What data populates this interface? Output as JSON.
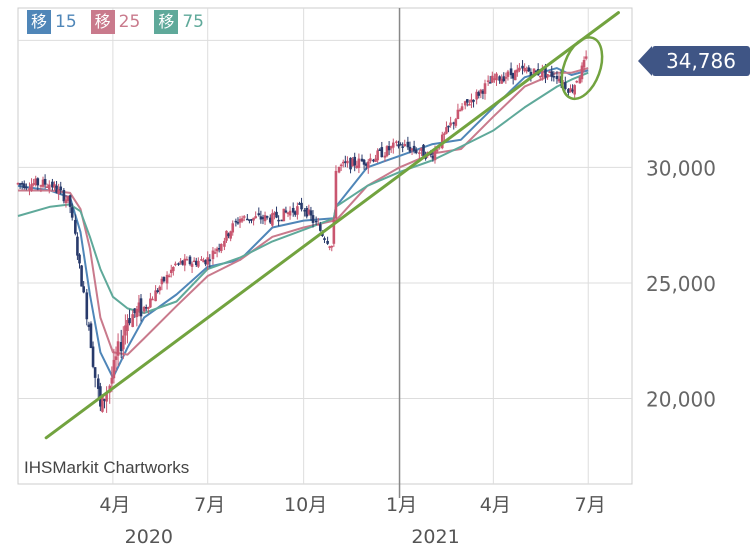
{
  "legend": [
    {
      "label": "15",
      "color": "#4f86b8",
      "tag": "移"
    },
    {
      "label": "25",
      "color": "#c97a8c",
      "tag": "移"
    },
    {
      "label": "75",
      "color": "#5fa99a",
      "tag": "移"
    }
  ],
  "credit": "IHSMarkit Chartworks",
  "last_price_label": "34,786",
  "chart_data": {
    "type": "candlestick",
    "y_ticks": [
      {
        "label": "30,000",
        "value": 30000
      },
      {
        "label": "25,000",
        "value": 25000
      },
      {
        "label": "20,000",
        "value": 20000
      }
    ],
    "x_ticks": [
      {
        "label": "4月",
        "year": "2020",
        "date": "2020-04"
      },
      {
        "label": "7月",
        "year": "",
        "date": "2020-07"
      },
      {
        "label": "10月",
        "year": "",
        "date": "2020-10"
      },
      {
        "label": "1月",
        "year": "2021",
        "date": "2021-01"
      },
      {
        "label": "4月",
        "year": "",
        "date": "2021-04"
      },
      {
        "label": "7月",
        "year": "",
        "date": "2021-07"
      }
    ],
    "ylim": [
      16300,
      36900
    ],
    "price_series": [
      {
        "date": "2020-01",
        "value": 29300
      },
      {
        "date": "2020-02",
        "value": 29300
      },
      {
        "date": "2020-02-20",
        "value": 28500
      },
      {
        "date": "2020-03-01",
        "value": 25500
      },
      {
        "date": "2020-03-10",
        "value": 23000
      },
      {
        "date": "2020-03-20",
        "value": 19500
      },
      {
        "date": "2020-04",
        "value": 21000
      },
      {
        "date": "2020-04-15",
        "value": 23500
      },
      {
        "date": "2020-05",
        "value": 23900
      },
      {
        "date": "2020-06",
        "value": 25800
      },
      {
        "date": "2020-07",
        "value": 26000
      },
      {
        "date": "2020-08",
        "value": 27800
      },
      {
        "date": "2020-09",
        "value": 27800
      },
      {
        "date": "2020-10",
        "value": 28300
      },
      {
        "date": "2020-10-30",
        "value": 26500
      },
      {
        "date": "2020-11",
        "value": 30000
      },
      {
        "date": "2020-12",
        "value": 30300
      },
      {
        "date": "2021-01",
        "value": 31000
      },
      {
        "date": "2021-02",
        "value": 30500
      },
      {
        "date": "2021-03",
        "value": 32500
      },
      {
        "date": "2021-04",
        "value": 33800
      },
      {
        "date": "2021-05",
        "value": 34200
      },
      {
        "date": "2021-06",
        "value": 34000
      },
      {
        "date": "2021-06-15",
        "value": 33300
      },
      {
        "date": "2021-07",
        "value": 34786
      }
    ],
    "moving_averages": [
      {
        "name": "15",
        "color": "#4f86b8",
        "values": [
          29200,
          29000,
          28700,
          27200,
          24500,
          22000,
          20900,
          22200,
          23500,
          24500,
          25700,
          26000,
          27400,
          27700,
          27800,
          28300,
          30000,
          30500,
          31000,
          31200,
          32600,
          33900,
          34300,
          34000,
          34200
        ]
      },
      {
        "name": "25",
        "color": "#c97a8c",
        "values": [
          29000,
          29000,
          28900,
          28200,
          26500,
          23500,
          22000,
          21900,
          22600,
          24000,
          25300,
          26000,
          27000,
          27400,
          27700,
          27700,
          29200,
          30000,
          30600,
          30800,
          32200,
          33500,
          34100,
          34100,
          34300
        ]
      },
      {
        "name": "75",
        "color": "#5fa99a",
        "values": [
          27900,
          28300,
          28400,
          28100,
          27000,
          25600,
          24400,
          23900,
          23700,
          24200,
          25600,
          26100,
          26800,
          27300,
          27800,
          28300,
          29200,
          29800,
          30300,
          30900,
          31600,
          32600,
          33500,
          33800,
          34100
        ]
      }
    ],
    "trend_line": {
      "start": {
        "date": "2020-01-28",
        "value": 18300
      },
      "end": {
        "date": "2021-07-30",
        "value": 36700
      },
      "color": "#72a33f"
    },
    "highlight_ellipse": {
      "date": "2021-06-25",
      "value": 34300,
      "color": "#72a33f"
    }
  }
}
